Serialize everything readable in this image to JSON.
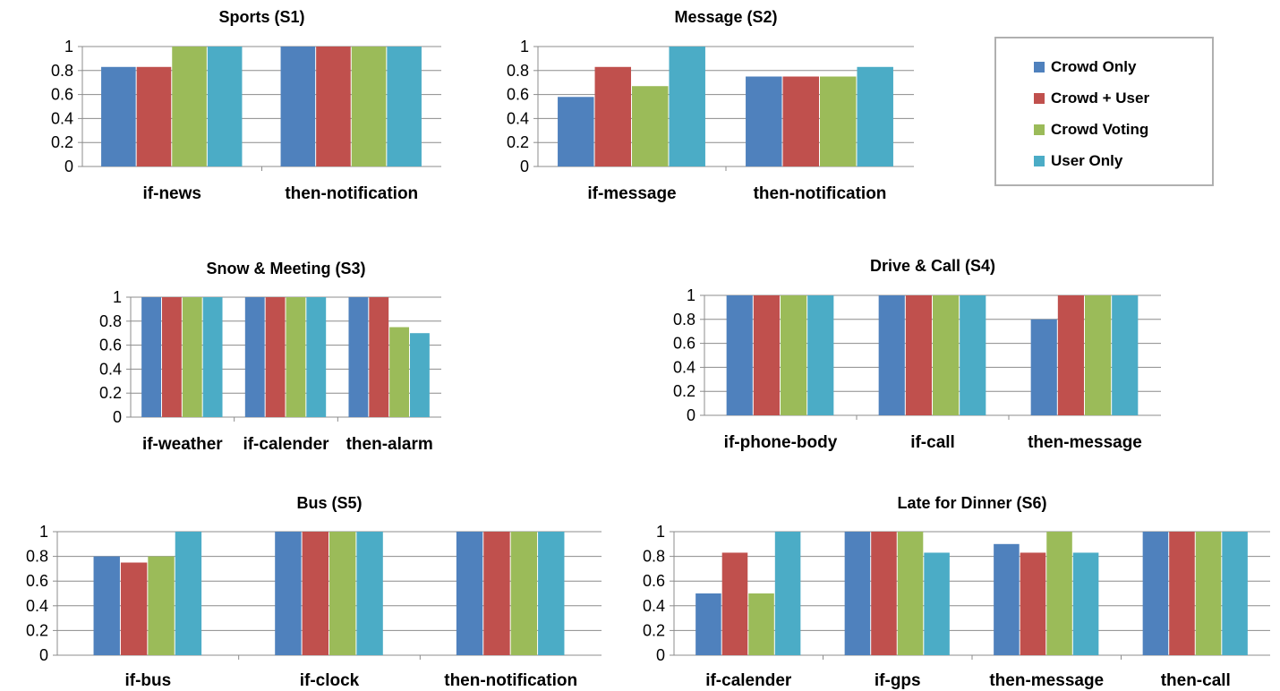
{
  "colors": [
    "#4F81BD",
    "#C0504D",
    "#9BBB59",
    "#4BACC6"
  ],
  "legend": [
    "Crowd Only",
    "Crowd + User",
    "Crowd Voting",
    "User Only"
  ],
  "y_ticks": [
    "0",
    "0.2",
    "0.4",
    "0.6",
    "0.8",
    "1"
  ],
  "chart_data": [
    {
      "type": "bar",
      "title": "Sports (S1)",
      "categories": [
        "if-news",
        "then-notification"
      ],
      "ylim": [
        0,
        1
      ],
      "series": [
        {
          "name": "Crowd Only",
          "values": [
            0.83,
            1.0
          ]
        },
        {
          "name": "Crowd + User",
          "values": [
            0.83,
            1.0
          ]
        },
        {
          "name": "Crowd Voting",
          "values": [
            1.0,
            1.0
          ]
        },
        {
          "name": "User Only",
          "values": [
            1.0,
            1.0
          ]
        }
      ]
    },
    {
      "type": "bar",
      "title": "Message (S2)",
      "categories": [
        "if-message",
        "then-notification"
      ],
      "ylim": [
        0,
        1
      ],
      "series": [
        {
          "name": "Crowd Only",
          "values": [
            0.58,
            0.75
          ]
        },
        {
          "name": "Crowd + User",
          "values": [
            0.83,
            0.75
          ]
        },
        {
          "name": "Crowd Voting",
          "values": [
            0.67,
            0.75
          ]
        },
        {
          "name": "User Only",
          "values": [
            1.0,
            0.83
          ]
        }
      ]
    },
    {
      "type": "bar",
      "title": "Snow & Meeting (S3)",
      "categories": [
        "if-weather",
        "if-calender",
        "then-alarm"
      ],
      "ylim": [
        0,
        1
      ],
      "series": [
        {
          "name": "Crowd Only",
          "values": [
            1.0,
            1.0,
            1.0
          ]
        },
        {
          "name": "Crowd + User",
          "values": [
            1.0,
            1.0,
            1.0
          ]
        },
        {
          "name": "Crowd Voting",
          "values": [
            1.0,
            1.0,
            0.75
          ]
        },
        {
          "name": "User Only",
          "values": [
            1.0,
            1.0,
            0.7
          ]
        }
      ]
    },
    {
      "type": "bar",
      "title": "Drive & Call (S4)",
      "categories": [
        "if-phone-body",
        "if-call",
        "then-message"
      ],
      "ylim": [
        0,
        1
      ],
      "series": [
        {
          "name": "Crowd Only",
          "values": [
            1.0,
            1.0,
            0.8
          ]
        },
        {
          "name": "Crowd + User",
          "values": [
            1.0,
            1.0,
            1.0
          ]
        },
        {
          "name": "Crowd Voting",
          "values": [
            1.0,
            1.0,
            1.0
          ]
        },
        {
          "name": "User Only",
          "values": [
            1.0,
            1.0,
            1.0
          ]
        }
      ]
    },
    {
      "type": "bar",
      "title": "Bus (S5)",
      "categories": [
        "if-bus",
        "if-clock",
        "then-notification"
      ],
      "ylim": [
        0,
        1
      ],
      "series": [
        {
          "name": "Crowd Only",
          "values": [
            0.8,
            1.0,
            1.0
          ]
        },
        {
          "name": "Crowd + User",
          "values": [
            0.75,
            1.0,
            1.0
          ]
        },
        {
          "name": "Crowd Voting",
          "values": [
            0.8,
            1.0,
            1.0
          ]
        },
        {
          "name": "User Only",
          "values": [
            1.0,
            1.0,
            1.0
          ]
        }
      ]
    },
    {
      "type": "bar",
      "title": "Late for Dinner (S6)",
      "categories": [
        "if-calender",
        "if-gps",
        "then-message",
        "then-call"
      ],
      "ylim": [
        0,
        1
      ],
      "series": [
        {
          "name": "Crowd Only",
          "values": [
            0.5,
            1.0,
            0.9,
            1.0
          ]
        },
        {
          "name": "Crowd + User",
          "values": [
            0.83,
            1.0,
            0.83,
            1.0
          ]
        },
        {
          "name": "Crowd Voting",
          "values": [
            0.5,
            1.0,
            1.0,
            1.0
          ]
        },
        {
          "name": "User Only",
          "values": [
            1.0,
            0.83,
            0.83,
            1.0
          ]
        }
      ]
    }
  ]
}
